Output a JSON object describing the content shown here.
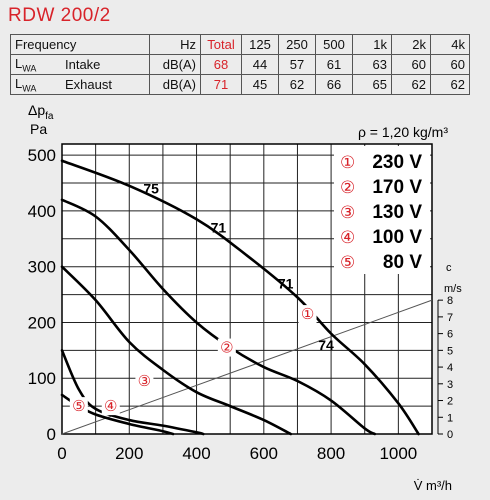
{
  "title": "RDW 200/2",
  "table": {
    "headers": [
      "Frequency",
      "Hz",
      "Total",
      "125",
      "250",
      "500",
      "1k",
      "2k",
      "4k"
    ],
    "rows": [
      {
        "label": "L",
        "sub": "WA",
        "name": "Intake",
        "unit": "dB(A)",
        "total": "68",
        "values": [
          "44",
          "57",
          "61",
          "63",
          "60",
          "60"
        ]
      },
      {
        "label": "L",
        "sub": "WA",
        "name": "Exhaust",
        "unit": "dB(A)",
        "total": "71",
        "values": [
          "45",
          "62",
          "66",
          "65",
          "62",
          "62"
        ]
      }
    ]
  },
  "chart_data": {
    "type": "line",
    "ylabel_symbol": "Δp",
    "ylabel_sub": "fa",
    "ylabel_unit": "Pa",
    "density_label": "ρ = 1,20 kg/m³",
    "xlabel": "V̇ m³/h",
    "right_axis_label": "c",
    "right_axis_unit": "m/s",
    "xlim": [
      0,
      1100
    ],
    "ylim": [
      0,
      520
    ],
    "x_ticks": [
      0,
      200,
      400,
      600,
      800,
      1000
    ],
    "y_ticks": [
      0,
      100,
      200,
      300,
      400,
      500
    ],
    "right_ticks": [
      0,
      1,
      2,
      3,
      4,
      5,
      6,
      7,
      8
    ],
    "system_line": [
      [
        0,
        0
      ],
      [
        1100,
        240
      ]
    ],
    "legend": [
      {
        "marker": "①",
        "text": "230 V"
      },
      {
        "marker": "②",
        "text": "170 V"
      },
      {
        "marker": "③",
        "text": "130 V"
      },
      {
        "marker": "④",
        "text": "100 V"
      },
      {
        "marker": "⑤",
        "text": "80 V"
      }
    ],
    "series": [
      {
        "marker": "①",
        "x": [
          0,
          200,
          400,
          550,
          700,
          800,
          900,
          1000,
          1060
        ],
        "y": [
          490,
          445,
          385,
          320,
          245,
          180,
          125,
          55,
          0
        ]
      },
      {
        "marker": "②",
        "x": [
          0,
          100,
          200,
          300,
          400,
          500,
          600,
          700,
          800,
          900,
          930
        ],
        "y": [
          420,
          390,
          330,
          260,
          200,
          155,
          120,
          95,
          60,
          10,
          0
        ]
      },
      {
        "marker": "③",
        "x": [
          0,
          100,
          200,
          300,
          400,
          500,
          600,
          680
        ],
        "y": [
          300,
          240,
          165,
          115,
          75,
          50,
          25,
          0
        ]
      },
      {
        "marker": "④",
        "x": [
          0,
          50,
          100,
          200,
          300,
          400,
          420
        ],
        "y": [
          150,
          80,
          45,
          25,
          15,
          3,
          0
        ]
      },
      {
        "marker": "⑤",
        "x": [
          0,
          50,
          100,
          200,
          300,
          330
        ],
        "y": [
          70,
          50,
          35,
          18,
          5,
          0
        ]
      }
    ],
    "annotations": [
      {
        "text": "75",
        "x": 265,
        "y": 440,
        "color": "#000"
      },
      {
        "text": "71",
        "x": 465,
        "y": 370,
        "color": "#000"
      },
      {
        "text": "71",
        "x": 665,
        "y": 270,
        "color": "#000"
      },
      {
        "text": "74",
        "x": 785,
        "y": 160,
        "color": "#000"
      },
      {
        "text": "①",
        "x": 730,
        "y": 215,
        "color": "#d8232a"
      },
      {
        "text": "②",
        "x": 490,
        "y": 155,
        "color": "#d8232a"
      },
      {
        "text": "③",
        "x": 245,
        "y": 95,
        "color": "#d8232a"
      },
      {
        "text": "④",
        "x": 145,
        "y": 50,
        "color": "#d8232a"
      },
      {
        "text": "⑤",
        "x": 50,
        "y": 50,
        "color": "#d8232a"
      }
    ]
  }
}
